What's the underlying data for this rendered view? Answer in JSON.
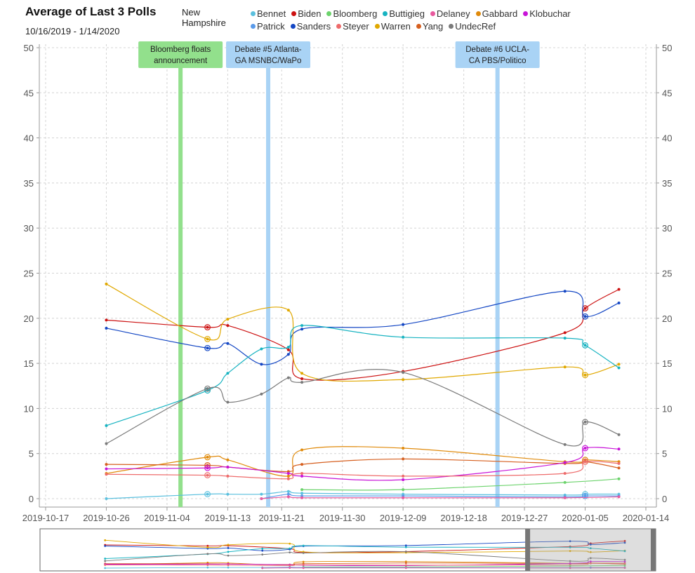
{
  "header": {
    "title": "Average of Last 3 Polls",
    "date_range": "10/16/2019 - 1/14/2020",
    "region_line1": "New",
    "region_line2": "Hampshire"
  },
  "legend": [
    {
      "name": "Bennet",
      "color": "#5bc0de"
    },
    {
      "name": "Biden",
      "color": "#cc1111"
    },
    {
      "name": "Bloomberg",
      "color": "#6cd36c"
    },
    {
      "name": "Buttigieg",
      "color": "#17b3c1"
    },
    {
      "name": "Delaney",
      "color": "#e85a9e"
    },
    {
      "name": "Gabbard",
      "color": "#e08a0b"
    },
    {
      "name": "Klobuchar",
      "color": "#c814d8"
    },
    {
      "name": "Patrick",
      "color": "#5b9bea"
    },
    {
      "name": "Sanders",
      "color": "#1447c4"
    },
    {
      "name": "Steyer",
      "color": "#ee6b6b"
    },
    {
      "name": "Warren",
      "color": "#e0a800"
    },
    {
      "name": "Yang",
      "color": "#d65f1f"
    },
    {
      "name": "UndecRef",
      "color": "#7a7a7a"
    }
  ],
  "chart_data": {
    "type": "line",
    "xlim": [
      "2019-10-17",
      "2020-01-14"
    ],
    "ylim": [
      0,
      50
    ],
    "y_ticks": [
      0,
      5,
      10,
      15,
      20,
      25,
      30,
      35,
      40,
      45,
      50
    ],
    "x_ticks": [
      "2019-10-17",
      "2019-10-26",
      "2019-11-04",
      "2019-11-13",
      "2019-11-21",
      "2019-11-30",
      "2019-12-09",
      "2019-12-18",
      "2019-12-27",
      "2020-01-05",
      "2020-01-14"
    ],
    "grid": true,
    "events": [
      {
        "date": "2019-11-06",
        "label_line1": "Bloomberg floats",
        "label_line2": "announcement",
        "color": "#92e08c"
      },
      {
        "date": "2019-11-19",
        "label_line1": "Debate #5 Atlanta-",
        "label_line2": "GA MSNBC/WaPo",
        "color": "#a9d3f5"
      },
      {
        "date": "2019-12-23",
        "label_line1": "Debate #6 UCLA-",
        "label_line2": "CA PBS/Politico",
        "color": "#a9d3f5"
      }
    ],
    "series": [
      {
        "name": "Biden",
        "points": [
          [
            "2019-10-26",
            19.8
          ],
          [
            "2019-11-10",
            19.0
          ],
          [
            "2019-11-13",
            19.2
          ],
          [
            "2019-11-22",
            16.5
          ],
          [
            "2019-11-24",
            13.3
          ],
          [
            "2019-12-09",
            14.1
          ],
          [
            "2020-01-02",
            18.4
          ],
          [
            "2020-01-05",
            21.1
          ],
          [
            "2020-01-10",
            23.2
          ]
        ]
      },
      {
        "name": "Sanders",
        "points": [
          [
            "2019-10-26",
            18.9
          ],
          [
            "2019-11-10",
            16.7
          ],
          [
            "2019-11-13",
            17.2
          ],
          [
            "2019-11-18",
            14.9
          ],
          [
            "2019-11-22",
            16.0
          ],
          [
            "2019-11-24",
            18.8
          ],
          [
            "2019-12-09",
            19.3
          ],
          [
            "2020-01-02",
            23.0
          ],
          [
            "2020-01-05",
            20.2
          ],
          [
            "2020-01-10",
            21.7
          ]
        ]
      },
      {
        "name": "Warren",
        "points": [
          [
            "2019-10-26",
            23.8
          ],
          [
            "2019-11-10",
            17.7
          ],
          [
            "2019-11-13",
            19.9
          ],
          [
            "2019-11-22",
            20.9
          ],
          [
            "2019-11-24",
            13.9
          ],
          [
            "2019-12-09",
            13.2
          ],
          [
            "2020-01-02",
            14.6
          ],
          [
            "2020-01-05",
            13.7
          ],
          [
            "2020-01-10",
            14.9
          ]
        ]
      },
      {
        "name": "Buttigieg",
        "points": [
          [
            "2019-10-26",
            8.1
          ],
          [
            "2019-11-10",
            12.0
          ],
          [
            "2019-11-13",
            13.9
          ],
          [
            "2019-11-18",
            16.6
          ],
          [
            "2019-11-22",
            16.8
          ],
          [
            "2019-11-24",
            19.2
          ],
          [
            "2019-12-09",
            17.9
          ],
          [
            "2020-01-02",
            17.8
          ],
          [
            "2020-01-05",
            17.0
          ],
          [
            "2020-01-10",
            14.5
          ]
        ]
      },
      {
        "name": "UndecRef",
        "points": [
          [
            "2019-10-26",
            6.1
          ],
          [
            "2019-11-10",
            12.2
          ],
          [
            "2019-11-13",
            10.7
          ],
          [
            "2019-11-18",
            11.6
          ],
          [
            "2019-11-22",
            13.4
          ],
          [
            "2019-11-24",
            12.9
          ],
          [
            "2019-12-09",
            14.0
          ],
          [
            "2020-01-02",
            6.0
          ],
          [
            "2020-01-05",
            8.5
          ],
          [
            "2020-01-10",
            7.1
          ]
        ]
      },
      {
        "name": "Gabbard",
        "points": [
          [
            "2019-10-26",
            2.8
          ],
          [
            "2019-11-10",
            4.6
          ],
          [
            "2019-11-13",
            4.3
          ],
          [
            "2019-11-22",
            2.5
          ],
          [
            "2019-11-24",
            5.4
          ],
          [
            "2019-12-09",
            5.6
          ],
          [
            "2020-01-02",
            4.1
          ],
          [
            "2020-01-05",
            4.3
          ],
          [
            "2020-01-10",
            4.1
          ]
        ]
      },
      {
        "name": "Yang",
        "points": [
          [
            "2019-10-26",
            3.8
          ],
          [
            "2019-11-10",
            3.7
          ],
          [
            "2019-11-13",
            3.5
          ],
          [
            "2019-11-22",
            3.0
          ],
          [
            "2019-11-24",
            3.8
          ],
          [
            "2019-12-09",
            4.4
          ],
          [
            "2020-01-02",
            3.9
          ],
          [
            "2020-01-05",
            4.1
          ],
          [
            "2020-01-10",
            3.4
          ]
        ]
      },
      {
        "name": "Klobuchar",
        "points": [
          [
            "2019-10-26",
            3.3
          ],
          [
            "2019-11-10",
            3.4
          ],
          [
            "2019-11-13",
            3.5
          ],
          [
            "2019-11-22",
            2.8
          ],
          [
            "2019-11-24",
            2.5
          ],
          [
            "2019-12-09",
            2.1
          ],
          [
            "2020-01-02",
            4.0
          ],
          [
            "2020-01-05",
            5.6
          ],
          [
            "2020-01-10",
            5.5
          ]
        ]
      },
      {
        "name": "Steyer",
        "points": [
          [
            "2019-10-26",
            2.7
          ],
          [
            "2019-11-10",
            2.6
          ],
          [
            "2019-11-13",
            2.5
          ],
          [
            "2019-11-22",
            2.2
          ],
          [
            "2019-11-24",
            2.8
          ],
          [
            "2019-12-09",
            2.5
          ],
          [
            "2020-01-02",
            2.8
          ],
          [
            "2020-01-05",
            4.1
          ],
          [
            "2020-01-10",
            3.9
          ]
        ]
      },
      {
        "name": "Bloomberg",
        "points": [
          [
            "2019-11-24",
            1.0
          ],
          [
            "2019-12-09",
            1.0
          ],
          [
            "2020-01-02",
            1.8
          ],
          [
            "2020-01-10",
            2.2
          ]
        ]
      },
      {
        "name": "Bennet",
        "points": [
          [
            "2019-10-26",
            0.0
          ],
          [
            "2019-11-10",
            0.5
          ],
          [
            "2019-11-13",
            0.5
          ],
          [
            "2019-11-18",
            0.5
          ],
          [
            "2019-11-22",
            0.8
          ],
          [
            "2019-11-24",
            0.6
          ],
          [
            "2019-12-09",
            0.5
          ],
          [
            "2020-01-02",
            0.4
          ],
          [
            "2020-01-05",
            0.5
          ],
          [
            "2020-01-10",
            0.5
          ]
        ]
      },
      {
        "name": "Patrick",
        "points": [
          [
            "2019-11-18",
            0.0
          ],
          [
            "2019-11-22",
            0.5
          ],
          [
            "2019-11-24",
            0.3
          ],
          [
            "2019-12-09",
            0.3
          ],
          [
            "2020-01-02",
            0.2
          ],
          [
            "2020-01-05",
            0.3
          ],
          [
            "2020-01-10",
            0.3
          ]
        ]
      },
      {
        "name": "Delaney",
        "points": [
          [
            "2019-11-18",
            0.0
          ],
          [
            "2019-11-22",
            0.2
          ],
          [
            "2019-11-24",
            0.1
          ],
          [
            "2019-12-09",
            0.1
          ],
          [
            "2020-01-02",
            0.1
          ],
          [
            "2020-01-10",
            0.2
          ]
        ]
      }
    ],
    "highlight_date": "2020-01-05",
    "navigator": {
      "window_start": "2019-10-17",
      "window_end": "2020-01-14",
      "selection_start": "2019-10-15",
      "selection_end": "2020-01-14"
    }
  }
}
